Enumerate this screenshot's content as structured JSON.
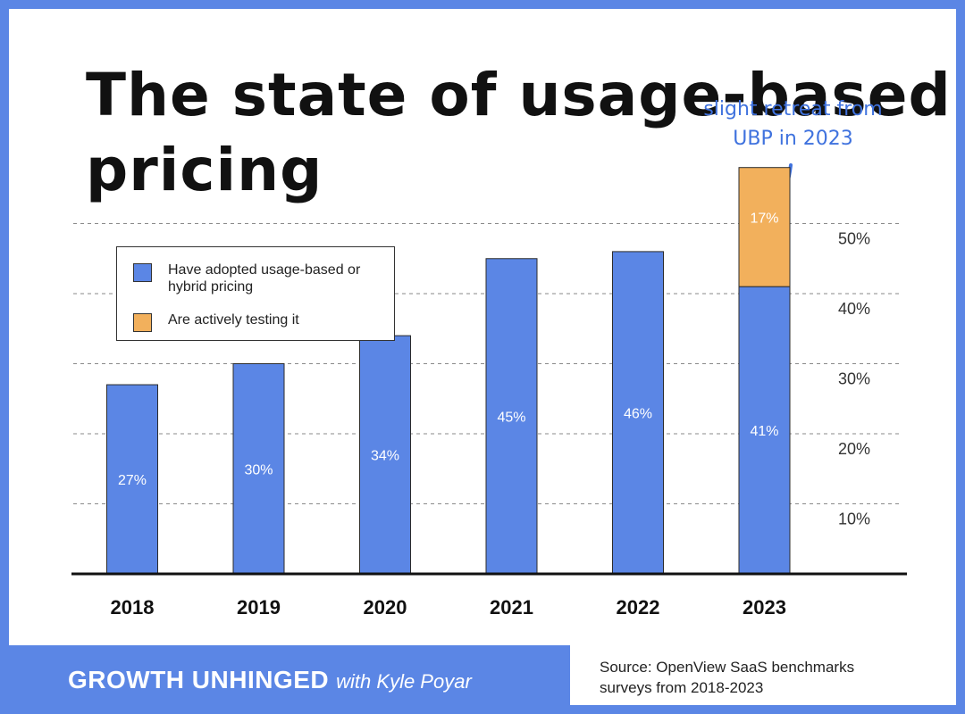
{
  "title": "The state of usage-based pricing",
  "annotation": "slight retreat from UBP in 2023",
  "chart_data": {
    "type": "bar",
    "stacked": true,
    "categories": [
      "2018",
      "2019",
      "2020",
      "2021",
      "2022",
      "2023"
    ],
    "series": [
      {
        "name": "Have adopted usage-based or hybrid pricing",
        "color": "#5b86e5",
        "values": [
          27,
          30,
          34,
          45,
          46,
          41
        ],
        "labels": [
          "27%",
          "30%",
          "34%",
          "45%",
          "46%",
          "41%"
        ]
      },
      {
        "name": "Are actively testing it",
        "color": "#f2b05c",
        "values": [
          null,
          null,
          null,
          null,
          null,
          17
        ],
        "labels": [
          null,
          null,
          null,
          null,
          null,
          "17%"
        ]
      }
    ],
    "yticks": [
      {
        "value": 10,
        "label": "10%"
      },
      {
        "value": 20,
        "label": "20%"
      },
      {
        "value": 30,
        "label": "30%"
      },
      {
        "value": 40,
        "label": "40%"
      },
      {
        "value": 50,
        "label": "50%"
      }
    ],
    "ylim": [
      0,
      60
    ],
    "grid": "dashed",
    "yaxis_position": "right",
    "legend_position": "top-left"
  },
  "footer": {
    "brand": "GROWTH UNHINGED",
    "brand_suffix": "with Kyle Poyar",
    "source": "Source: OpenView SaaS benchmarks surveys from 2018-2023"
  }
}
